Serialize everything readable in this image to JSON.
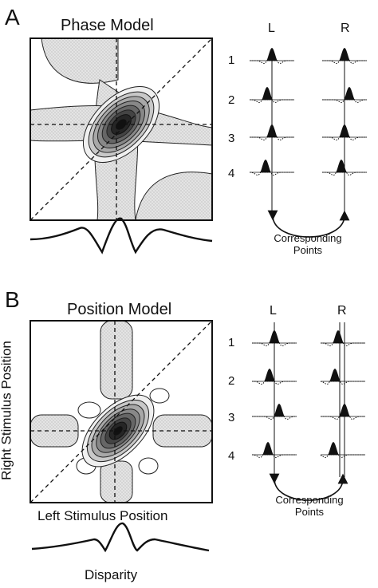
{
  "panels": [
    {
      "letter": "A",
      "title": "Phase Model",
      "col_left": "L",
      "col_right": "R",
      "rows": [
        "1",
        "2",
        "3",
        "4"
      ],
      "caption_line1": "Corresponding",
      "caption_line2": "Points"
    },
    {
      "letter": "B",
      "title": "Position Model",
      "col_left": "L",
      "col_right": "R",
      "rows": [
        "1",
        "2",
        "3",
        "4"
      ],
      "caption_line1": "Corresponding",
      "caption_line2": "Points",
      "y_axis_label": "Right Stimulus Position",
      "x_axis_label": "Left Stimulus Position",
      "profile_label": "Disparity"
    }
  ]
}
